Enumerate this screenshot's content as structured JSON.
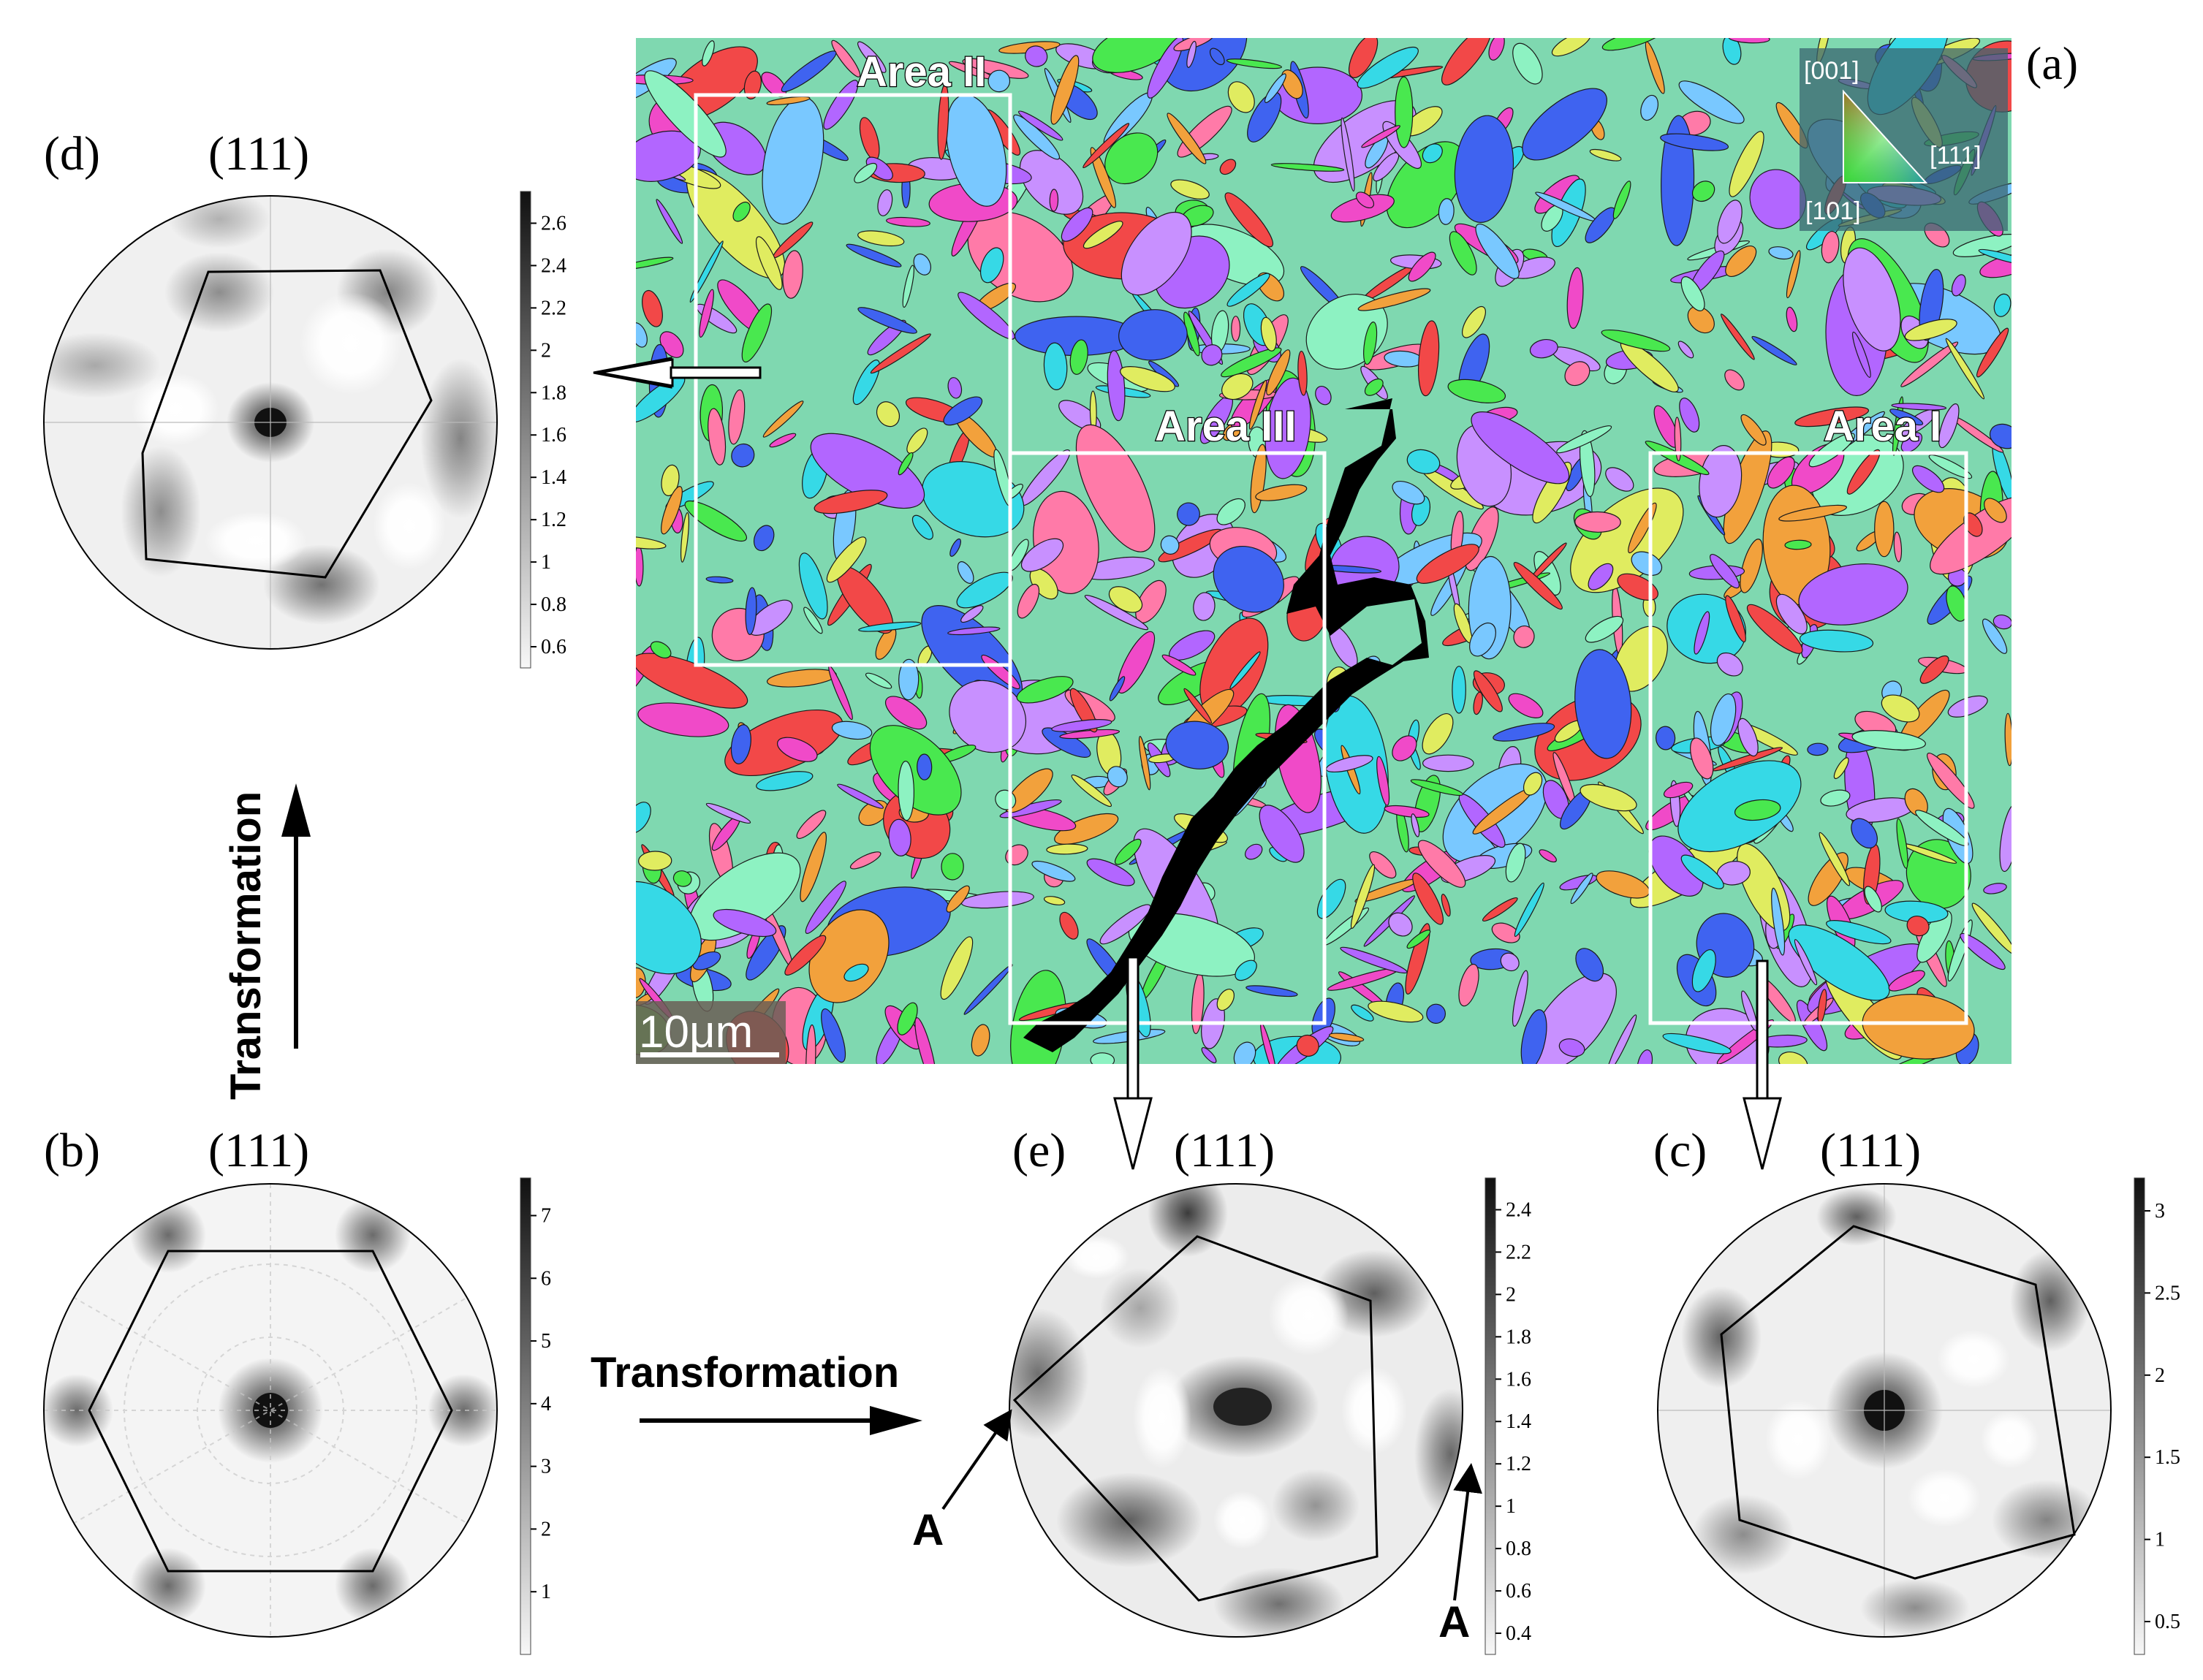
{
  "panels": {
    "a": {
      "label": "(a)",
      "areas": [
        {
          "key": "area1",
          "label": "Area I"
        },
        {
          "key": "area2",
          "label": "Area II"
        },
        {
          "key": "area3",
          "label": "Area III"
        }
      ],
      "scale_bar": "10μm",
      "ipf_key": {
        "top": "[001]",
        "right": "[111]",
        "bottom": "[101]"
      }
    },
    "b": {
      "label": "(b)",
      "title": "(111)",
      "colorbar_ticks": [
        "7",
        "6",
        "5",
        "4",
        "3",
        "2",
        "1"
      ],
      "colorbar_values": [
        7,
        6,
        5,
        4,
        3,
        2,
        1
      ],
      "colorbar_range": [
        0,
        7.6
      ]
    },
    "c": {
      "label": "(c)",
      "title": "(111)",
      "colorbar_ticks": [
        "3",
        "2.5",
        "2",
        "1.5",
        "1",
        "0.5"
      ],
      "colorbar_values": [
        3,
        2.5,
        2,
        1.5,
        1,
        0.5
      ],
      "colorbar_range": [
        0.3,
        3.2
      ]
    },
    "d": {
      "label": "(d)",
      "title": "(111)",
      "colorbar_ticks": [
        "2.6",
        "2.4",
        "2.2",
        "2",
        "1.8",
        "1.6",
        "1.4",
        "1.2",
        "1",
        "0.8",
        "0.6"
      ],
      "colorbar_values": [
        2.6,
        2.4,
        2.2,
        2,
        1.8,
        1.6,
        1.4,
        1.2,
        1,
        0.8,
        0.6
      ],
      "colorbar_range": [
        0.5,
        2.75
      ]
    },
    "e": {
      "label": "(e)",
      "title": "(111)",
      "colorbar_ticks": [
        "2.4",
        "2.2",
        "2",
        "1.8",
        "1.6",
        "1.4",
        "1.2",
        "1",
        "0.8",
        "0.6",
        "0.4"
      ],
      "colorbar_values": [
        2.4,
        2.2,
        2,
        1.8,
        1.6,
        1.4,
        1.2,
        1,
        0.8,
        0.6,
        0.4
      ],
      "colorbar_range": [
        0.3,
        2.55
      ],
      "annotations": [
        "A",
        "A"
      ]
    }
  },
  "arrows": {
    "transformation_horizontal": "Transformation",
    "transformation_vertical": "Transformation"
  },
  "colors": {
    "ebsd_palette": [
      "#36d9e6",
      "#49e84f",
      "#f04ac8",
      "#f2a13c",
      "#b266ff",
      "#ff7aa8",
      "#e0ec60",
      "#3f63f0",
      "#f24848",
      "#8df2c2",
      "#c890ff",
      "#79c8ff"
    ]
  }
}
